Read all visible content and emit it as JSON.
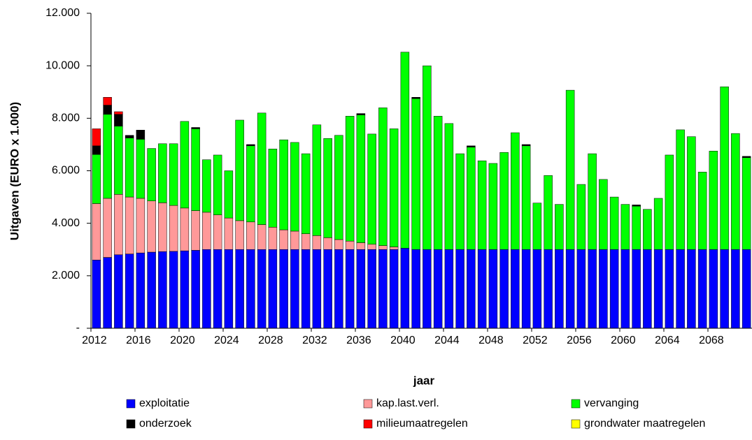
{
  "chart_data": {
    "type": "stacked-bar",
    "x_label": "jaar",
    "y_label": "Uitgaven (EURO x 1.000)",
    "categories": [
      "2012",
      null,
      null,
      null,
      "2016",
      null,
      null,
      null,
      "2020",
      null,
      null,
      null,
      "2024",
      null,
      null,
      null,
      "2028",
      null,
      null,
      null,
      "2032",
      null,
      null,
      null,
      "2036",
      null,
      null,
      null,
      "2040",
      null,
      null,
      null,
      "2044",
      null,
      null,
      null,
      "2048",
      null,
      null,
      null,
      "2052",
      null,
      null,
      null,
      "2056",
      null,
      null,
      null,
      "2060",
      null,
      null,
      null,
      "2064",
      null,
      null,
      null,
      "2068",
      null,
      null,
      null
    ],
    "ylim": [
      0,
      12000
    ],
    "yticks": [
      {
        "value": 0,
        "label": "-"
      },
      {
        "value": 2000,
        "label": "2.000"
      },
      {
        "value": 4000,
        "label": "4.000"
      },
      {
        "value": 6000,
        "label": "6.000"
      },
      {
        "value": 8000,
        "label": "8.000"
      },
      {
        "value": 10000,
        "label": "10.000"
      },
      {
        "value": 12000,
        "label": "12.000"
      }
    ],
    "legend": "bottom",
    "series": [
      {
        "name": "exploitatie",
        "color": "#0000ff",
        "values": [
          2600,
          2700,
          2800,
          2830,
          2870,
          2900,
          2920,
          2930,
          2950,
          2970,
          3000,
          3000,
          3000,
          3000,
          3000,
          3000,
          3000,
          3000,
          3000,
          3000,
          3000,
          3000,
          3000,
          3000,
          3000,
          3000,
          3000,
          3000,
          3050,
          3000,
          3000,
          3000,
          3000,
          3000,
          3000,
          3000,
          3000,
          3000,
          3000,
          3000,
          3000,
          3000,
          3000,
          3000,
          3000,
          3000,
          3000,
          3000,
          3000,
          3000,
          3000,
          3000,
          3000,
          3000,
          3000,
          3000,
          3000,
          3000,
          3000,
          3000
        ]
      },
      {
        "name": "kap.last.verl.",
        "color": "#ff9999",
        "values": [
          2150,
          2250,
          2300,
          2170,
          2080,
          1950,
          1860,
          1750,
          1630,
          1510,
          1420,
          1320,
          1200,
          1100,
          1050,
          950,
          850,
          750,
          700,
          600,
          530,
          450,
          380,
          320,
          260,
          200,
          150,
          100,
          0,
          0,
          0,
          0,
          0,
          0,
          0,
          0,
          0,
          0,
          0,
          0,
          0,
          0,
          0,
          0,
          0,
          0,
          0,
          0,
          0,
          0,
          0,
          0,
          0,
          0,
          0,
          0,
          0,
          0,
          0,
          0
        ]
      },
      {
        "name": "vervanging",
        "color": "#00ff00",
        "values": [
          1870,
          3200,
          2600,
          2250,
          2250,
          2000,
          2250,
          2350,
          3300,
          3120,
          2000,
          2280,
          1800,
          3830,
          2900,
          4250,
          2980,
          3430,
          3380,
          3050,
          4220,
          3780,
          3970,
          4760,
          4870,
          4200,
          5250,
          4500,
          7470,
          5750,
          7000,
          5080,
          4800,
          3650,
          3900,
          3380,
          3280,
          3700,
          4450,
          3950,
          1770,
          2820,
          1720,
          6070,
          2480,
          3650,
          2670,
          2000,
          1720,
          1650,
          1530,
          1950,
          3600,
          4560,
          4300,
          2950,
          3750,
          6200,
          4420,
          3500
        ]
      },
      {
        "name": "onderzoek",
        "color": "#000000",
        "values": [
          330,
          350,
          450,
          100,
          350,
          0,
          0,
          0,
          0,
          50,
          0,
          0,
          0,
          0,
          50,
          0,
          0,
          0,
          0,
          0,
          0,
          0,
          0,
          0,
          50,
          0,
          0,
          0,
          0,
          50,
          0,
          0,
          0,
          0,
          50,
          0,
          0,
          0,
          0,
          50,
          0,
          0,
          0,
          0,
          0,
          0,
          0,
          0,
          0,
          50,
          0,
          0,
          0,
          0,
          0,
          0,
          0,
          0,
          0,
          50
        ]
      },
      {
        "name": "milieumaatregelen",
        "color": "#ff0000",
        "values": [
          650,
          300,
          100,
          0,
          0,
          0,
          0,
          0,
          0,
          0,
          0,
          0,
          0,
          0,
          0,
          0,
          0,
          0,
          0,
          0,
          0,
          0,
          0,
          0,
          0,
          0,
          0,
          0,
          0,
          0,
          0,
          0,
          0,
          0,
          0,
          0,
          0,
          0,
          0,
          0,
          0,
          0,
          0,
          0,
          0,
          0,
          0,
          0,
          0,
          0,
          0,
          0,
          0,
          0,
          0,
          0,
          0,
          0,
          0,
          0
        ]
      },
      {
        "name": "grondwater maatregelen",
        "color": "#ffff00",
        "values": [
          0,
          0,
          0,
          0,
          0,
          0,
          0,
          0,
          0,
          0,
          0,
          0,
          0,
          0,
          0,
          0,
          0,
          0,
          0,
          0,
          0,
          0,
          0,
          0,
          0,
          0,
          0,
          0,
          0,
          0,
          0,
          0,
          0,
          0,
          0,
          0,
          0,
          0,
          0,
          0,
          0,
          0,
          0,
          0,
          0,
          0,
          0,
          0,
          0,
          0,
          0,
          0,
          0,
          0,
          0,
          0,
          0,
          0,
          0,
          0
        ]
      }
    ]
  }
}
